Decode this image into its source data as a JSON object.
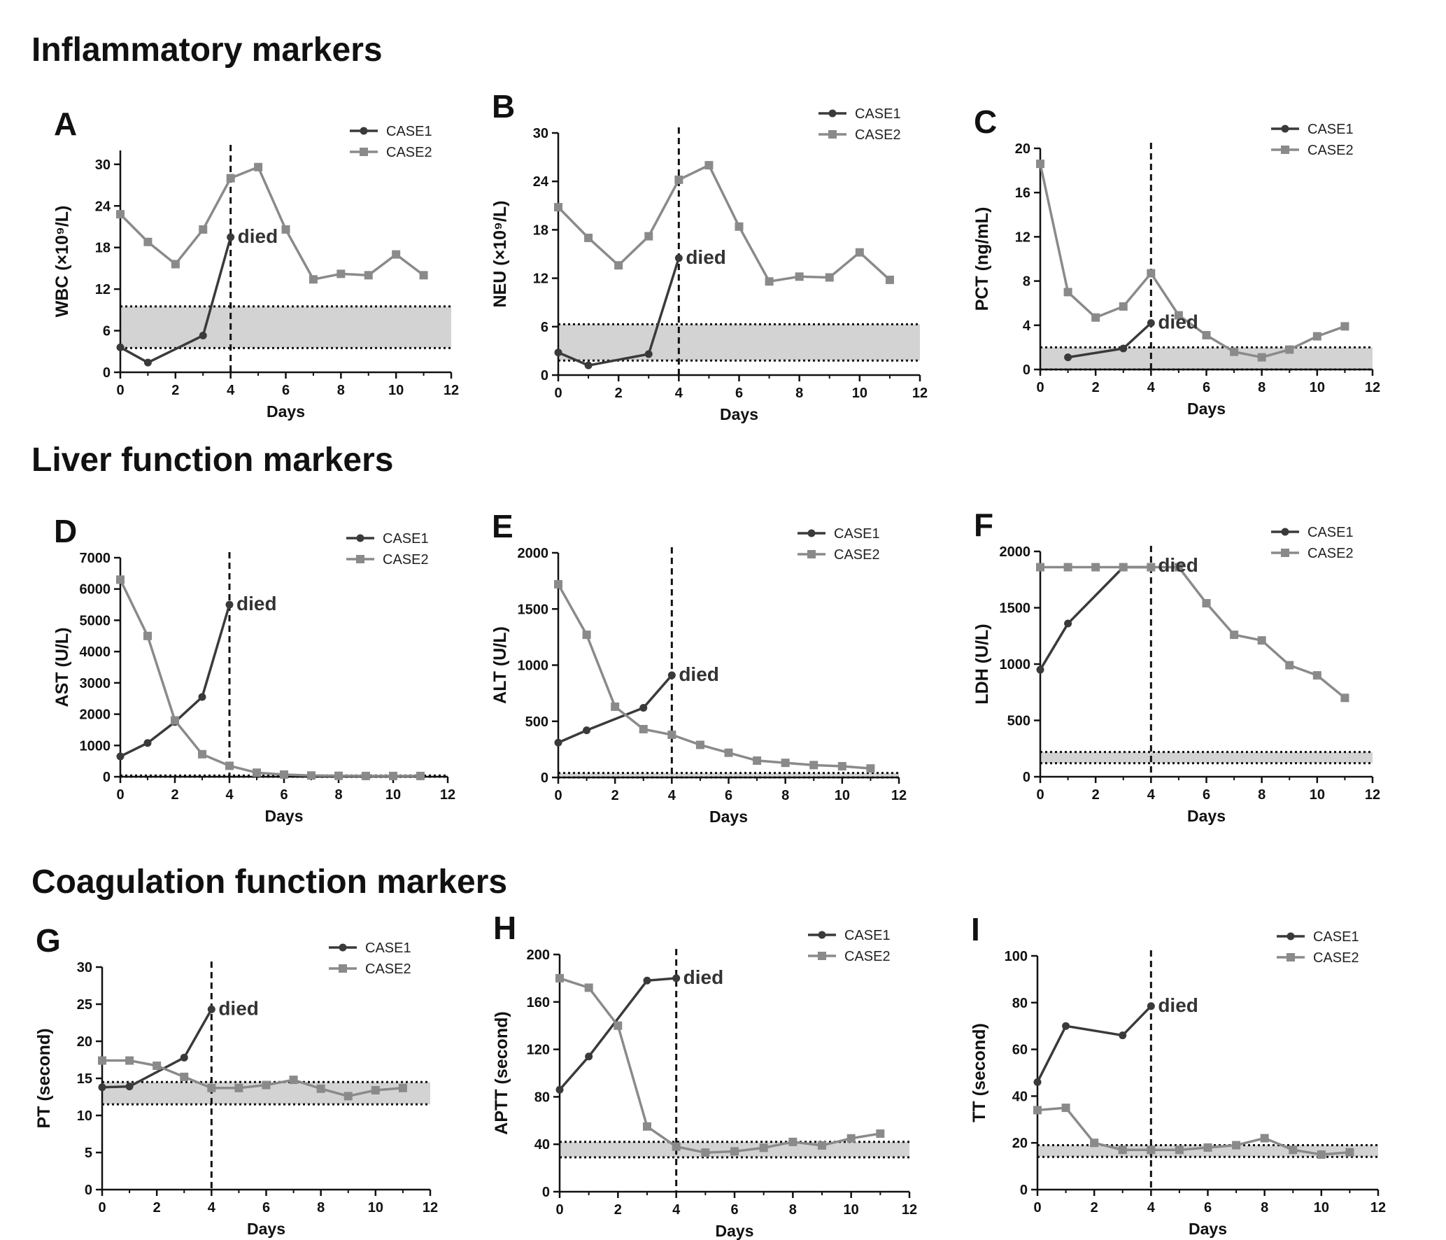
{
  "sections": [
    "Inflammatory markers",
    "Liver function markers",
    "Coagulation function markers"
  ],
  "colors": {
    "case1": "#3a3a3a",
    "case2": "#8a8a8a",
    "normal_band": "#d3d3d3",
    "axis": "#111111"
  },
  "chart_data": [
    {
      "panel": "A",
      "type": "line",
      "section": "Inflammatory markers",
      "title": "",
      "xlabel": "Days",
      "ylabel": "WBC (×10⁹/L)",
      "xlim": [
        0,
        12
      ],
      "ylim": [
        0,
        32
      ],
      "xticks": [
        0,
        2,
        4,
        6,
        8,
        10,
        12
      ],
      "yticks": [
        0,
        6,
        12,
        18,
        24,
        30
      ],
      "normal_range": [
        3.5,
        9.5
      ],
      "death_day": 4,
      "annotation": {
        "text": "died",
        "x": 4,
        "y": 19.5
      },
      "legend": [
        "CASE1",
        "CASE2"
      ],
      "legend_position": "top-right",
      "series": [
        {
          "name": "CASE1",
          "marker": "circle",
          "x": [
            0,
            1,
            3,
            4
          ],
          "values": [
            3.6,
            1.4,
            5.3,
            19.5
          ]
        },
        {
          "name": "CASE2",
          "marker": "square",
          "x": [
            0,
            1,
            2,
            3,
            4,
            5,
            6,
            7,
            8,
            9,
            10,
            11
          ],
          "values": [
            22.8,
            18.8,
            15.6,
            20.6,
            28.0,
            29.6,
            20.6,
            13.4,
            14.2,
            14.0,
            17.0,
            14.0
          ]
        }
      ]
    },
    {
      "panel": "B",
      "type": "line",
      "section": "Inflammatory markers",
      "title": "",
      "xlabel": "Days",
      "ylabel": "NEU (×10⁹/L)",
      "xlim": [
        0,
        12
      ],
      "ylim": [
        0,
        30
      ],
      "xticks": [
        0,
        2,
        4,
        6,
        8,
        10,
        12
      ],
      "yticks": [
        0,
        6,
        12,
        18,
        24,
        30
      ],
      "normal_range": [
        1.8,
        6.3
      ],
      "death_day": 4,
      "annotation": {
        "text": "died",
        "x": 4,
        "y": 14.5
      },
      "legend": [
        "CASE1",
        "CASE2"
      ],
      "legend_position": "top-right",
      "series": [
        {
          "name": "CASE1",
          "marker": "circle",
          "x": [
            0,
            1,
            3,
            4
          ],
          "values": [
            2.8,
            1.2,
            2.6,
            14.5
          ]
        },
        {
          "name": "CASE2",
          "marker": "square",
          "x": [
            0,
            1,
            2,
            3,
            4,
            5,
            6,
            7,
            8,
            9,
            10,
            11
          ],
          "values": [
            20.8,
            17.0,
            13.6,
            17.2,
            24.2,
            26.0,
            18.4,
            11.6,
            12.2,
            12.1,
            15.2,
            11.8
          ]
        }
      ]
    },
    {
      "panel": "C",
      "type": "line",
      "section": "Inflammatory markers",
      "title": "",
      "xlabel": "Days",
      "ylabel": "PCT (ng/mL)",
      "xlim": [
        0,
        12
      ],
      "ylim": [
        0,
        20
      ],
      "xticks": [
        0,
        2,
        4,
        6,
        8,
        10,
        12
      ],
      "yticks": [
        0,
        4,
        8,
        12,
        16,
        20
      ],
      "normal_range": [
        0,
        2.0
      ],
      "death_day": 4,
      "annotation": {
        "text": "died",
        "x": 4,
        "y": 4.2
      },
      "legend": [
        "CASE1",
        "CASE2"
      ],
      "legend_position": "top-right",
      "series": [
        {
          "name": "CASE1",
          "marker": "circle",
          "x": [
            1,
            3,
            4
          ],
          "values": [
            1.1,
            1.9,
            4.2
          ]
        },
        {
          "name": "CASE2",
          "marker": "square",
          "x": [
            0,
            1,
            2,
            3,
            4,
            5,
            6,
            7,
            8,
            9,
            10,
            11
          ],
          "values": [
            18.6,
            7.0,
            4.7,
            5.7,
            8.7,
            4.9,
            3.1,
            1.6,
            1.1,
            1.8,
            3.0,
            3.9
          ]
        }
      ]
    },
    {
      "panel": "D",
      "type": "line",
      "section": "Liver function markers",
      "title": "",
      "xlabel": "Days",
      "ylabel": "AST (U/L)",
      "xlim": [
        0,
        12
      ],
      "ylim": [
        0,
        7000
      ],
      "xticks": [
        0,
        2,
        4,
        6,
        8,
        10,
        12
      ],
      "yticks": [
        0,
        1000,
        2000,
        3000,
        4000,
        5000,
        6000,
        7000
      ],
      "normal_range": [
        0,
        40
      ],
      "death_day": 4,
      "annotation": {
        "text": "died",
        "x": 4,
        "y": 5500
      },
      "legend": [
        "CASE1",
        "CASE2"
      ],
      "legend_position": "top-right",
      "series": [
        {
          "name": "CASE1",
          "marker": "circle",
          "x": [
            0,
            1,
            2,
            3,
            4
          ],
          "values": [
            650,
            1080,
            1750,
            2550,
            5500
          ]
        },
        {
          "name": "CASE2",
          "marker": "square",
          "x": [
            0,
            1,
            2,
            3,
            4,
            5,
            6,
            7,
            8,
            9,
            10,
            11
          ],
          "values": [
            6300,
            4500,
            1800,
            720,
            350,
            130,
            70,
            40,
            30,
            25,
            25,
            25
          ]
        }
      ]
    },
    {
      "panel": "E",
      "type": "line",
      "section": "Liver function markers",
      "title": "",
      "xlabel": "Days",
      "ylabel": "ALT (U/L)",
      "xlim": [
        0,
        12
      ],
      "ylim": [
        0,
        2000
      ],
      "xticks": [
        0,
        2,
        4,
        6,
        8,
        10,
        12
      ],
      "yticks": [
        0,
        500,
        1000,
        1500,
        2000
      ],
      "normal_range": [
        0,
        40
      ],
      "death_day": 4,
      "annotation": {
        "text": "died",
        "x": 4,
        "y": 910
      },
      "legend": [
        "CASE1",
        "CASE2"
      ],
      "legend_position": "top-right",
      "series": [
        {
          "name": "CASE1",
          "marker": "circle",
          "x": [
            0,
            1,
            3,
            4
          ],
          "values": [
            310,
            420,
            620,
            910
          ]
        },
        {
          "name": "CASE2",
          "marker": "square",
          "x": [
            0,
            1,
            2,
            3,
            4,
            5,
            6,
            7,
            8,
            9,
            10,
            11
          ],
          "values": [
            1720,
            1270,
            630,
            430,
            380,
            290,
            220,
            150,
            130,
            110,
            100,
            80
          ]
        }
      ]
    },
    {
      "panel": "F",
      "type": "line",
      "section": "Liver function markers",
      "title": "",
      "xlabel": "Days",
      "ylabel": "LDH (U/L)",
      "xlim": [
        0,
        12
      ],
      "ylim": [
        0,
        2000
      ],
      "xticks": [
        0,
        2,
        4,
        6,
        8,
        10,
        12
      ],
      "yticks": [
        0,
        500,
        1000,
        1500,
        2000
      ],
      "normal_range": [
        120,
        220
      ],
      "death_day": 4,
      "annotation": {
        "text": "died",
        "x": 4,
        "y": 1870
      },
      "legend": [
        "CASE1",
        "CASE2"
      ],
      "legend_position": "top-right",
      "series": [
        {
          "name": "CASE1",
          "marker": "circle",
          "x": [
            0,
            1,
            3,
            4
          ],
          "values": [
            950,
            1360,
            1860,
            1860
          ]
        },
        {
          "name": "CASE2",
          "marker": "square",
          "x": [
            0,
            1,
            2,
            3,
            4,
            5,
            6,
            7,
            8,
            9,
            10,
            11
          ],
          "values": [
            1860,
            1860,
            1860,
            1860,
            1860,
            1860,
            1540,
            1260,
            1210,
            990,
            900,
            700
          ]
        }
      ]
    },
    {
      "panel": "G",
      "type": "line",
      "section": "Coagulation function markers",
      "title": "",
      "xlabel": "Days",
      "ylabel": "PT (second)",
      "xlim": [
        0,
        12
      ],
      "ylim": [
        0,
        30
      ],
      "xticks": [
        0,
        2,
        4,
        6,
        8,
        10,
        12
      ],
      "yticks": [
        0,
        5,
        10,
        15,
        20,
        25,
        30
      ],
      "normal_range": [
        11.5,
        14.5
      ],
      "death_day": 4,
      "annotation": {
        "text": "died",
        "x": 4,
        "y": 24.3
      },
      "legend": [
        "CASE1",
        "CASE2"
      ],
      "legend_position": "top-right",
      "series": [
        {
          "name": "CASE1",
          "marker": "circle",
          "x": [
            0,
            1,
            3,
            4
          ],
          "values": [
            13.8,
            13.9,
            17.8,
            24.3
          ]
        },
        {
          "name": "CASE2",
          "marker": "square",
          "x": [
            0,
            1,
            2,
            3,
            4,
            5,
            6,
            7,
            8,
            9,
            10,
            11
          ],
          "values": [
            17.4,
            17.4,
            16.7,
            15.2,
            13.7,
            13.7,
            14.1,
            14.8,
            13.6,
            12.6,
            13.4,
            13.7
          ]
        }
      ]
    },
    {
      "panel": "H",
      "type": "line",
      "section": "Coagulation function markers",
      "title": "",
      "xlabel": "Days",
      "ylabel": "APTT (second)",
      "xlim": [
        0,
        12
      ],
      "ylim": [
        0,
        200
      ],
      "xticks": [
        0,
        2,
        4,
        6,
        8,
        10,
        12
      ],
      "yticks": [
        0,
        40,
        80,
        120,
        160,
        200
      ],
      "normal_range": [
        29,
        42
      ],
      "death_day": 4,
      "annotation": {
        "text": "died",
        "x": 4,
        "y": 180
      },
      "legend": [
        "CASE1",
        "CASE2"
      ],
      "legend_position": "top-right",
      "series": [
        {
          "name": "CASE1",
          "marker": "circle",
          "x": [
            0,
            1,
            3,
            4
          ],
          "values": [
            86,
            114,
            178,
            180
          ]
        },
        {
          "name": "CASE2",
          "marker": "square",
          "x": [
            0,
            1,
            2,
            3,
            4,
            5,
            6,
            7,
            8,
            9,
            10,
            11
          ],
          "values": [
            180,
            172,
            140,
            55,
            38,
            33,
            34,
            37,
            42,
            39,
            45,
            49
          ]
        }
      ]
    },
    {
      "panel": "I",
      "type": "line",
      "section": "Coagulation function markers",
      "title": "",
      "xlabel": "Days",
      "ylabel": "TT (second)",
      "xlim": [
        0,
        12
      ],
      "ylim": [
        0,
        100
      ],
      "xticks": [
        0,
        2,
        4,
        6,
        8,
        10,
        12
      ],
      "yticks": [
        0,
        20,
        40,
        60,
        80,
        100
      ],
      "normal_range": [
        14,
        19
      ],
      "death_day": 4,
      "annotation": {
        "text": "died",
        "x": 4,
        "y": 78.5
      },
      "legend": [
        "CASE1",
        "CASE2"
      ],
      "legend_position": "top-right",
      "series": [
        {
          "name": "CASE1",
          "marker": "circle",
          "x": [
            0,
            1,
            3,
            4
          ],
          "values": [
            46,
            70,
            66,
            78.5
          ]
        },
        {
          "name": "CASE2",
          "marker": "square",
          "x": [
            0,
            1,
            2,
            3,
            4,
            5,
            6,
            7,
            8,
            9,
            10,
            11
          ],
          "values": [
            34,
            35,
            20,
            17,
            17,
            17,
            18,
            19,
            22,
            17,
            15,
            16
          ]
        }
      ]
    }
  ]
}
